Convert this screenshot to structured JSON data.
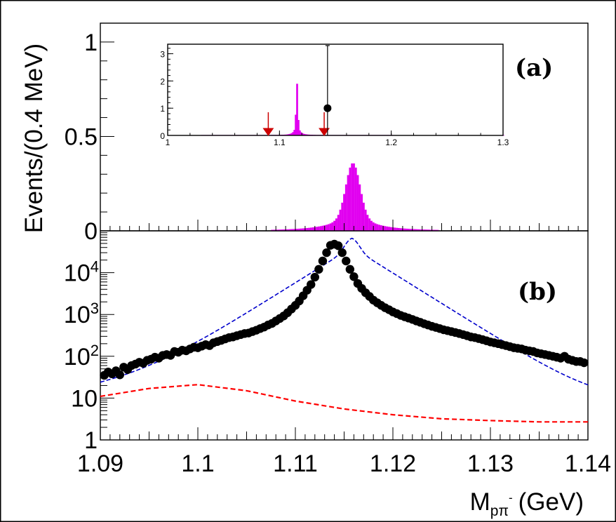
{
  "chart_data": [
    {
      "id": "a",
      "type": "bar",
      "panel_label": "(a)",
      "ylabel": "Events/(0.4 MeV)",
      "xlim": [
        1.09,
        1.14
      ],
      "ylim": [
        0,
        1.1
      ],
      "yticks": [
        {
          "v": 0,
          "t": "0"
        },
        {
          "v": 0.5,
          "t": "0.5"
        },
        {
          "v": 1,
          "t": "1"
        }
      ],
      "colors": {
        "histogram": "#e100f0",
        "frame": "#000000"
      },
      "signal_mc": {
        "peak_x": 1.1159,
        "peak_y": 0.36,
        "core_width": 0.00072,
        "tail_width": 0.0024
      },
      "inset": {
        "type": "bar",
        "xlim": [
          1.0,
          1.3
        ],
        "ylim": [
          0,
          3.35
        ],
        "xticks": [
          {
            "v": 1.0,
            "t": "1"
          },
          {
            "v": 1.1,
            "t": "1.1"
          },
          {
            "v": 1.2,
            "t": "1.2"
          },
          {
            "v": 1.3,
            "t": "1.3"
          }
        ],
        "yticks": [
          {
            "v": 0,
            "t": "0"
          },
          {
            "v": 1,
            "t": "1"
          },
          {
            "v": 2,
            "t": "2"
          },
          {
            "v": 3,
            "t": "3"
          }
        ],
        "signal_mc": {
          "peak_x": 1.1157,
          "peak_y": 1.9
        },
        "data_point": {
          "x": 1.143,
          "y": 1.0,
          "err_low": 1.0,
          "err_high": 2.3
        },
        "arrows": [
          1.09,
          1.14
        ],
        "arrow_color": "#cc0000"
      }
    },
    {
      "id": "b",
      "type": "scatter",
      "panel_label": "(b)",
      "xlabel": "M",
      "xlabel_sub": "pπ",
      "xlabel_sup": "-",
      "xlabel_unit": "(GeV)",
      "xlim": [
        1.09,
        1.14
      ],
      "ylim": [
        1,
        100000
      ],
      "yscale": "log",
      "xticks": [
        {
          "v": 1.09,
          "t": "1.09"
        },
        {
          "v": 1.1,
          "t": "1.1"
        },
        {
          "v": 1.11,
          "t": "1.11"
        },
        {
          "v": 1.12,
          "t": "1.12"
        },
        {
          "v": 1.13,
          "t": "1.13"
        },
        {
          "v": 1.14,
          "t": "1.14"
        }
      ],
      "yticks": [
        {
          "v": 1,
          "t": "1"
        },
        {
          "v": 10,
          "t": "10"
        },
        {
          "v": 100,
          "t": "10",
          "sup": "2"
        },
        {
          "v": 1000,
          "t": "10",
          "sup": "3"
        },
        {
          "v": 10000,
          "t": "10",
          "sup": "4"
        }
      ],
      "colors": {
        "data": "#000000",
        "fit": "#0000cc",
        "background": "#ff0000"
      },
      "data": {
        "x": [
          1.0904,
          1.0908,
          1.0912,
          1.0916,
          1.092,
          1.0924,
          1.0928,
          1.0932,
          1.0936,
          1.094,
          1.0944,
          1.0948,
          1.0952,
          1.0956,
          1.096,
          1.0964,
          1.0968,
          1.0972,
          1.0976,
          1.098,
          1.0984,
          1.0988,
          1.0992,
          1.0996,
          1.1,
          1.1004,
          1.1008,
          1.1012,
          1.1016,
          1.102,
          1.1024,
          1.1028,
          1.1032,
          1.1036,
          1.104,
          1.1044,
          1.1048,
          1.1052,
          1.1056,
          1.106,
          1.1064,
          1.1068,
          1.1072,
          1.1076,
          1.108,
          1.1084,
          1.1088,
          1.1092,
          1.1096,
          1.11,
          1.1104,
          1.1108,
          1.1112,
          1.1116,
          1.112,
          1.1124,
          1.1128,
          1.1132,
          1.1136,
          1.114,
          1.1144,
          1.1148,
          1.1152,
          1.1156,
          1.116,
          1.1164,
          1.1168,
          1.1172,
          1.1176,
          1.118,
          1.1184,
          1.1188,
          1.1192,
          1.1196,
          1.12,
          1.1204,
          1.1208,
          1.1212,
          1.1216,
          1.122,
          1.1224,
          1.1228,
          1.1232,
          1.1236,
          1.124,
          1.1244,
          1.1248,
          1.1252,
          1.1256,
          1.126,
          1.1264,
          1.1268,
          1.1272,
          1.1276,
          1.128,
          1.1284,
          1.1288,
          1.1292,
          1.1296,
          1.13,
          1.1304,
          1.1308,
          1.1312,
          1.1316,
          1.132,
          1.1324,
          1.1328,
          1.1332,
          1.1336,
          1.134,
          1.1344,
          1.1348,
          1.1352,
          1.1356,
          1.136,
          1.1364,
          1.1368,
          1.1372,
          1.1376,
          1.138,
          1.1384,
          1.1388,
          1.1392,
          1.1396
        ],
        "y": [
          35,
          42,
          38,
          45,
          36,
          55,
          48,
          60,
          65,
          72,
          68,
          80,
          85,
          95,
          90,
          105,
          110,
          105,
          130,
          125,
          140,
          135,
          150,
          165,
          160,
          175,
          190,
          180,
          210,
          225,
          240,
          260,
          280,
          290,
          310,
          330,
          350,
          360,
          390,
          420,
          460,
          500,
          560,
          610,
          700,
          800,
          920,
          1100,
          1350,
          1650,
          2100,
          2800,
          3800,
          5200,
          7800,
          12000,
          19000,
          30000,
          45000,
          48000,
          44000,
          30000,
          19000,
          12000,
          8000,
          5500,
          4200,
          3300,
          2700,
          2200,
          1900,
          1650,
          1450,
          1300,
          1150,
          1050,
          950,
          880,
          820,
          760,
          700,
          650,
          600,
          560,
          520,
          490,
          460,
          430,
          410,
          390,
          370,
          350,
          330,
          310,
          290,
          280,
          265,
          250,
          235,
          220,
          210,
          200,
          190,
          180,
          170,
          160,
          155,
          150,
          140,
          135,
          130,
          120,
          115,
          110,
          105,
          100,
          95,
          90,
          100,
          85,
          80,
          75,
          75,
          70
        ]
      },
      "fit": {
        "peak_x": 1.1158,
        "peak_y": 48000,
        "width": 0.00062,
        "exp_amp": 40000,
        "exp_slope": 335,
        "floor": 6
      },
      "background": {
        "x": [
          1.09,
          1.095,
          1.1,
          1.105,
          1.11,
          1.115,
          1.12,
          1.125,
          1.13,
          1.135,
          1.14
        ],
        "y": [
          11,
          17,
          21,
          15,
          8.5,
          5.5,
          4.0,
          3.2,
          2.9,
          2.7,
          2.7
        ]
      }
    }
  ]
}
